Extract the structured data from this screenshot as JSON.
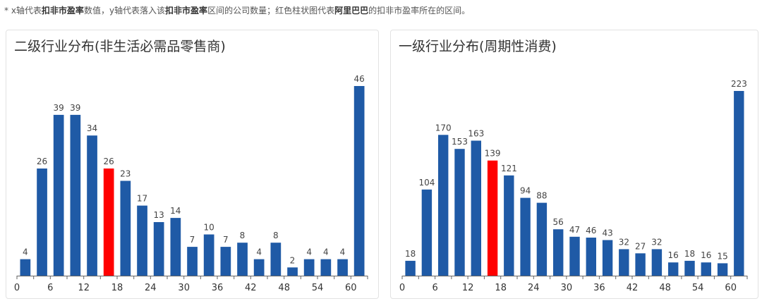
{
  "note": {
    "p1": "* x轴代表",
    "b1": "扣非市盈率",
    "p2": "数值，y轴代表落入该",
    "b2": "扣非市盈率",
    "p3": "区间的公司数量；红色柱状图代表",
    "b3": "阿里巴巴",
    "p4": "的扣非市盈率所在的区间。"
  },
  "colors": {
    "bar": "#1f5aa6",
    "highlight": "#ff0000",
    "axis": "#666666"
  },
  "chart_data": [
    {
      "type": "bar",
      "title": "二级行业分布(非生活必需品零售商)",
      "values": [
        4,
        26,
        39,
        39,
        34,
        26,
        23,
        17,
        13,
        14,
        7,
        10,
        7,
        8,
        4,
        8,
        2,
        4,
        4,
        4,
        46
      ],
      "highlight_index": 5,
      "xticks": [
        "0",
        "6",
        "12",
        "18",
        "24",
        "30",
        "36",
        "42",
        "48",
        "54",
        "60"
      ],
      "ylim": [
        0,
        46
      ],
      "grid": false
    },
    {
      "type": "bar",
      "title": "一级行业分布(周期性消费)",
      "values": [
        18,
        104,
        170,
        153,
        163,
        139,
        121,
        94,
        88,
        56,
        47,
        46,
        43,
        32,
        27,
        32,
        16,
        18,
        16,
        15,
        223
      ],
      "highlight_index": 5,
      "xticks": [
        "0",
        "6",
        "12",
        "18",
        "24",
        "30",
        "36",
        "42",
        "48",
        "54",
        "60"
      ],
      "ylim": [
        0,
        223
      ],
      "grid": false
    }
  ]
}
